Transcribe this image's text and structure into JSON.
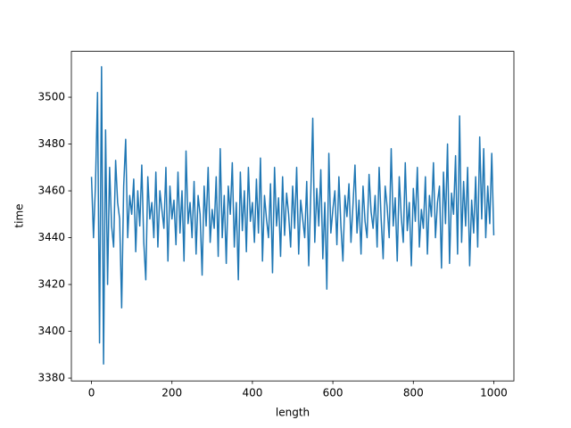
{
  "chart_data": {
    "type": "line",
    "xlabel": "length",
    "ylabel": "time",
    "x": [
      0,
      5,
      10,
      15,
      20,
      25,
      30,
      35,
      40,
      45,
      50,
      55,
      60,
      65,
      70,
      75,
      80,
      85,
      90,
      95,
      100,
      105,
      110,
      115,
      120,
      125,
      130,
      135,
      140,
      145,
      150,
      155,
      160,
      165,
      170,
      175,
      180,
      185,
      190,
      195,
      200,
      205,
      210,
      215,
      220,
      225,
      230,
      235,
      240,
      245,
      250,
      255,
      260,
      265,
      270,
      275,
      280,
      285,
      290,
      295,
      300,
      305,
      310,
      315,
      320,
      325,
      330,
      335,
      340,
      345,
      350,
      355,
      360,
      365,
      370,
      375,
      380,
      385,
      390,
      395,
      400,
      405,
      410,
      415,
      420,
      425,
      430,
      435,
      440,
      445,
      450,
      455,
      460,
      465,
      470,
      475,
      480,
      485,
      490,
      495,
      500,
      505,
      510,
      515,
      520,
      525,
      530,
      535,
      540,
      545,
      550,
      555,
      560,
      565,
      570,
      575,
      580,
      585,
      590,
      595,
      600,
      605,
      610,
      615,
      620,
      625,
      630,
      635,
      640,
      645,
      650,
      655,
      660,
      665,
      670,
      675,
      680,
      685,
      690,
      695,
      700,
      705,
      710,
      715,
      720,
      725,
      730,
      735,
      740,
      745,
      750,
      755,
      760,
      765,
      770,
      775,
      780,
      785,
      790,
      795,
      800,
      805,
      810,
      815,
      820,
      825,
      830,
      835,
      840,
      845,
      850,
      855,
      860,
      865,
      870,
      875,
      880,
      885,
      890,
      895,
      900,
      905,
      910,
      915,
      920,
      925,
      930,
      935,
      940,
      945,
      950,
      955,
      960,
      965,
      970,
      975,
      980,
      985,
      990,
      995,
      1000
    ],
    "series": [
      {
        "name": "time",
        "color": "#1f77b4",
        "values": [
          3466,
          3440,
          3463,
          3502,
          3395,
          3513,
          3386,
          3486,
          3420,
          3470,
          3445,
          3436,
          3473,
          3455,
          3448,
          3410,
          3462,
          3482,
          3440,
          3458,
          3450,
          3465,
          3434,
          3460,
          3445,
          3471,
          3438,
          3422,
          3466,
          3448,
          3455,
          3440,
          3468,
          3436,
          3460,
          3452,
          3444,
          3470,
          3430,
          3462,
          3448,
          3456,
          3437,
          3468,
          3442,
          3460,
          3430,
          3477,
          3446,
          3455,
          3440,
          3464,
          3433,
          3458,
          3450,
          3424,
          3462,
          3445,
          3470,
          3438,
          3452,
          3444,
          3466,
          3432,
          3478,
          3440,
          3458,
          3429,
          3462,
          3450,
          3472,
          3436,
          3455,
          3422,
          3468,
          3443,
          3460,
          3434,
          3470,
          3447,
          3455,
          3438,
          3465,
          3442,
          3474,
          3430,
          3458,
          3448,
          3440,
          3463,
          3425,
          3470,
          3445,
          3457,
          3432,
          3466,
          3441,
          3459,
          3450,
          3436,
          3462,
          3444,
          3470,
          3433,
          3456,
          3448,
          3440,
          3464,
          3428,
          3458,
          3491,
          3438,
          3461,
          3445,
          3469,
          3431,
          3455,
          3418,
          3476,
          3442,
          3452,
          3460,
          3437,
          3466,
          3445,
          3430,
          3458,
          3449,
          3463,
          3438,
          3454,
          3471,
          3442,
          3456,
          3433,
          3462,
          3447,
          3440,
          3467,
          3451,
          3444,
          3458,
          3436,
          3470,
          3448,
          3431,
          3462,
          3453,
          3440,
          3478,
          3445,
          3457,
          3430,
          3466,
          3449,
          3438,
          3472,
          3443,
          3455,
          3428,
          3461,
          3447,
          3470,
          3436,
          3452,
          3444,
          3466,
          3433,
          3458,
          3449,
          3472,
          3440,
          3455,
          3462,
          3427,
          3468,
          3446,
          3480,
          3429,
          3459,
          3450,
          3475,
          3433,
          3492,
          3438,
          3464,
          3445,
          3470,
          3428,
          3456,
          3442,
          3466,
          3436,
          3483,
          3448,
          3478,
          3440,
          3462,
          3446,
          3476,
          3441
        ]
      }
    ],
    "xlim": [
      -50,
      1050
    ],
    "xticks": [
      0,
      200,
      400,
      600,
      800,
      1000
    ],
    "ylim": [
      3378.8,
      3519.6
    ],
    "yticks": [
      3380,
      3400,
      3420,
      3440,
      3460,
      3480,
      3500
    ]
  }
}
